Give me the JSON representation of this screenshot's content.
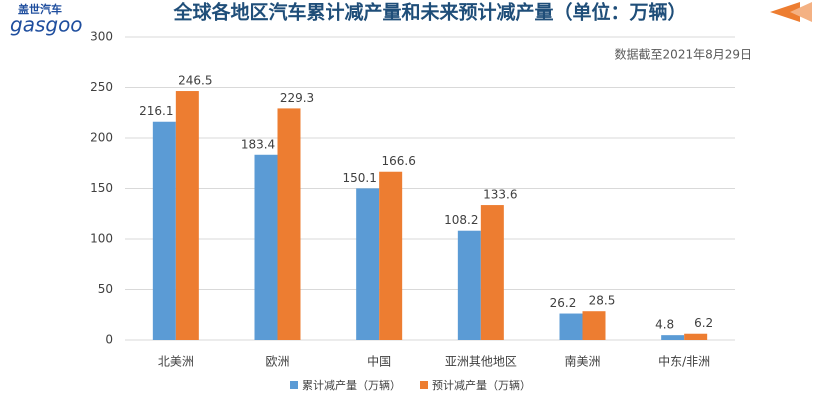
{
  "header": {
    "logo": "盖世汽车",
    "brand": "gasgoo"
  },
  "chart_data": {
    "type": "bar",
    "title": "全球各地区汽车累计减产量和未来预计减产量（单位：万辆）",
    "annotation": "数据截至2021年8月29日",
    "categories": [
      "北美洲",
      "欧洲",
      "中国",
      "亚洲其他地区",
      "南美洲",
      "中东/非洲"
    ],
    "series": [
      {
        "name": "累计减产量（万辆）",
        "color": "#5b9bd5",
        "values": [
          216.1,
          183.4,
          150.1,
          108.2,
          26.2,
          4.8
        ]
      },
      {
        "name": "预计减产量（万辆）",
        "color": "#ed7d31",
        "values": [
          246.5,
          229.3,
          166.6,
          133.6,
          28.5,
          6.2
        ]
      }
    ],
    "ylim": [
      0,
      300
    ],
    "yticks": [
      0,
      50,
      100,
      150,
      200,
      250,
      300
    ],
    "grid": true,
    "legend": "bottom"
  }
}
